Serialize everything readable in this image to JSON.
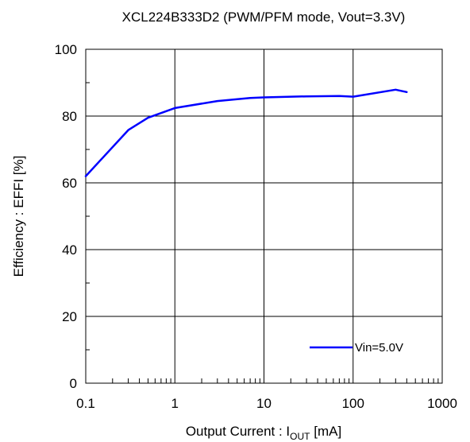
{
  "chart_data": {
    "type": "line",
    "title": "XCL224B333D2 (PWM/PFM mode, Vout=3.3V)",
    "xlabel": {
      "prefix": "Output Current : I",
      "subscript": "OUT",
      "suffix": " [mA]"
    },
    "ylabel": "Efficiency : EFFI [%]",
    "xscale": "log",
    "xlim": [
      0.1,
      1000
    ],
    "ylim": [
      0,
      100
    ],
    "x_ticks": [
      0.1,
      1,
      10,
      100,
      1000
    ],
    "x_tick_labels": [
      "0.1",
      "1",
      "10",
      "100",
      "1000"
    ],
    "y_ticks": [
      0,
      20,
      40,
      60,
      80,
      100
    ],
    "y_tick_labels": [
      "0",
      "20",
      "40",
      "60",
      "80",
      "100"
    ],
    "grid": true,
    "legend_position": "bottom-right",
    "series": [
      {
        "name": "Vin=5.0V",
        "color": "#0000ff",
        "points": [
          {
            "x": 0.1,
            "y": 62.0
          },
          {
            "x": 0.3,
            "y": 75.8
          },
          {
            "x": 0.5,
            "y": 79.5
          },
          {
            "x": 1,
            "y": 82.4
          },
          {
            "x": 3,
            "y": 84.5
          },
          {
            "x": 7,
            "y": 85.4
          },
          {
            "x": 10,
            "y": 85.6
          },
          {
            "x": 30,
            "y": 85.9
          },
          {
            "x": 70,
            "y": 86.0
          },
          {
            "x": 100,
            "y": 85.8
          },
          {
            "x": 300,
            "y": 87.9
          },
          {
            "x": 400,
            "y": 87.2
          }
        ]
      }
    ]
  }
}
